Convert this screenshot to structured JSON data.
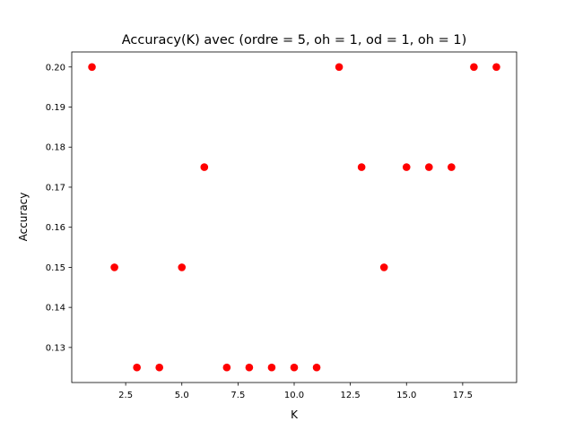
{
  "chart_data": {
    "type": "scatter",
    "title": "Accuracy(K) avec (ordre = 5, oh = 1, od = 1, oh = 1)",
    "xlabel": "K",
    "ylabel": "Accuracy",
    "xlim": [
      0.1,
      19.9
    ],
    "ylim": [
      0.12125,
      0.20375
    ],
    "xticks": [
      2.5,
      5.0,
      7.5,
      10.0,
      12.5,
      15.0,
      17.5
    ],
    "xtick_labels": [
      "2.5",
      "5.0",
      "7.5",
      "10.0",
      "12.5",
      "15.0",
      "17.5"
    ],
    "yticks": [
      0.13,
      0.14,
      0.15,
      0.16,
      0.17,
      0.18,
      0.19,
      0.2
    ],
    "ytick_labels": [
      "0.13",
      "0.14",
      "0.15",
      "0.16",
      "0.17",
      "0.18",
      "0.19",
      "0.20"
    ],
    "grid": false,
    "marker_color": "#ff0000",
    "x": [
      1,
      2,
      3,
      4,
      5,
      6,
      7,
      8,
      9,
      10,
      11,
      12,
      13,
      14,
      15,
      16,
      17,
      18,
      19
    ],
    "y": [
      0.2,
      0.15,
      0.125,
      0.125,
      0.15,
      0.175,
      0.125,
      0.125,
      0.125,
      0.125,
      0.125,
      0.2,
      0.175,
      0.15,
      0.175,
      0.175,
      0.175,
      0.2,
      0.2
    ]
  }
}
